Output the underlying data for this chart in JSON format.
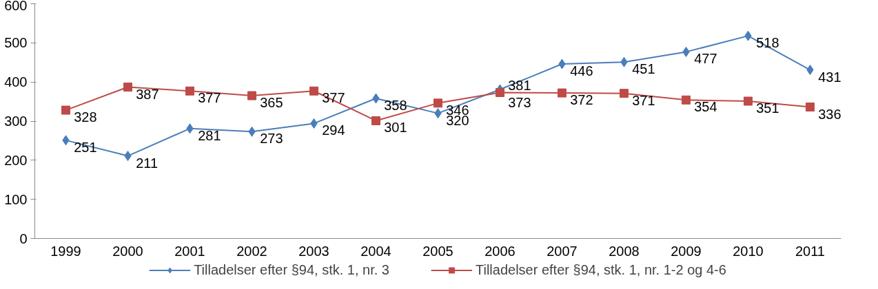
{
  "chart_data": {
    "type": "line",
    "categories": [
      "1999",
      "2000",
      "2001",
      "2002",
      "2003",
      "2004",
      "2005",
      "2006",
      "2007",
      "2008",
      "2009",
      "2010",
      "2011"
    ],
    "series": [
      {
        "name": "Tilladelser efter §94, stk. 1, nr. 3",
        "color": "#4a7ebb",
        "marker": "diamond",
        "values": [
          251,
          211,
          281,
          273,
          294,
          358,
          320,
          381,
          446,
          451,
          477,
          518,
          431
        ]
      },
      {
        "name": "Tilladelser efter §94, stk. 1, nr. 1-2 og 4-6",
        "color": "#be4b48",
        "marker": "square",
        "values": [
          328,
          387,
          377,
          365,
          377,
          301,
          346,
          373,
          372,
          371,
          354,
          351,
          336
        ]
      }
    ],
    "ylim": [
      0,
      600
    ],
    "yticks": [
      0,
      100,
      200,
      300,
      400,
      500,
      600
    ],
    "grid": false,
    "legend": "bottom",
    "data_labels": true,
    "line_style": "solid"
  }
}
